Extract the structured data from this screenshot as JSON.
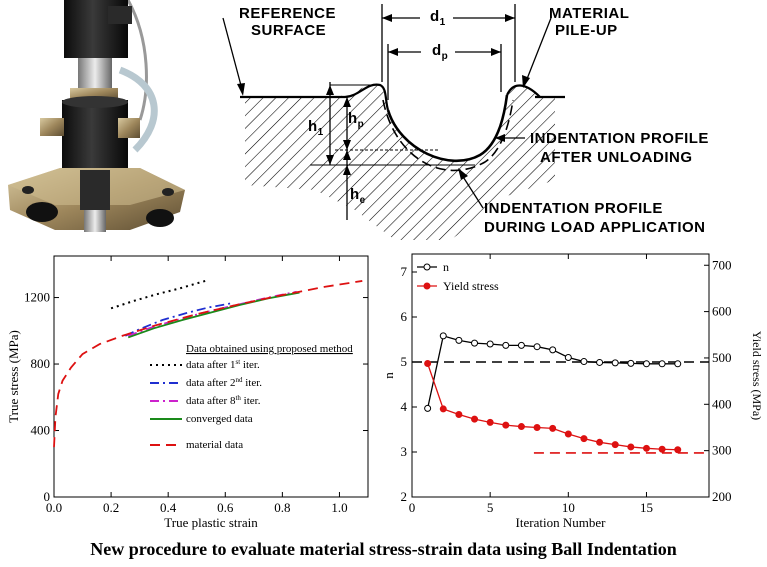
{
  "caption": "New procedure to evaluate material stress-strain data using Ball Indentation",
  "schematic": {
    "labels": {
      "reference_surface_1": "REFERENCE",
      "reference_surface_2": "SURFACE",
      "pileup_1": "MATERIAL",
      "pileup_2": "PILE-UP",
      "d1": "d",
      "d1_sub": "1",
      "dp": "d",
      "dp_sub": "p",
      "h1": "h",
      "h1_sub": "1",
      "hp": "h",
      "hp_sub": "p",
      "he": "h",
      "he_sub": "e",
      "after_unload_1": "INDENTATION PROFILE",
      "after_unload_2": "AFTER UNLOADING",
      "during_load_1": "INDENTATION PROFILE",
      "during_load_2": "DURING LOAD APPLICATION"
    }
  },
  "chart_data": [
    {
      "type": "line",
      "xlabel": "True plastic strain",
      "ylabel": "True stress (MPa)",
      "xlim": [
        0.0,
        1.1
      ],
      "ylim": [
        0,
        1450
      ],
      "xticks": [
        "0.0",
        "0.2",
        "0.4",
        "0.6",
        "0.8",
        "1.0"
      ],
      "yticks": [
        "0",
        "400",
        "800",
        "1200"
      ],
      "legend_title": "Data obtained using proposed method",
      "legend": [
        {
          "text": "data after 1",
          "sup": "st",
          "tail": " iter."
        },
        {
          "text": "data after 2",
          "sup": "nd",
          "tail": " iter."
        },
        {
          "text": "data after 8",
          "sup": "th",
          "tail": " iter."
        },
        {
          "text": "converged data",
          "sup": "",
          "tail": ""
        },
        {
          "text": "material data",
          "sup": "",
          "tail": ""
        }
      ],
      "series": [
        {
          "name": "data after 1st iter.",
          "color": "#000000",
          "dash": "dot",
          "x": [
            0.2,
            0.28,
            0.36,
            0.44,
            0.5,
            0.54
          ],
          "y": [
            1135,
            1180,
            1220,
            1255,
            1285,
            1305
          ]
        },
        {
          "name": "data after 2nd iter.",
          "color": "#1f2fd0",
          "dash": "dashdot",
          "x": [
            0.25,
            0.3,
            0.38,
            0.46,
            0.54,
            0.62
          ],
          "y": [
            970,
            1010,
            1065,
            1105,
            1140,
            1165
          ]
        },
        {
          "name": "data after 8th iter.",
          "color": "#cc22cc",
          "dash": "dashdot",
          "x": [
            0.26,
            0.35,
            0.45,
            0.55,
            0.65,
            0.75,
            0.85
          ],
          "y": [
            970,
            1025,
            1075,
            1120,
            1160,
            1200,
            1235
          ]
        },
        {
          "name": "converged data",
          "color": "#1a8a1a",
          "dash": "solid",
          "x": [
            0.26,
            0.35,
            0.45,
            0.55,
            0.65,
            0.75,
            0.86
          ],
          "y": [
            960,
            1015,
            1065,
            1110,
            1155,
            1195,
            1230
          ]
        },
        {
          "name": "material data",
          "color": "#dd1111",
          "dash": "dash",
          "x": [
            0.0,
            0.005,
            0.015,
            0.03,
            0.06,
            0.1,
            0.16,
            0.24,
            0.35,
            0.5,
            0.65,
            0.8,
            0.95,
            1.08
          ],
          "y": [
            300,
            480,
            620,
            700,
            780,
            860,
            920,
            970,
            1030,
            1100,
            1160,
            1215,
            1265,
            1300
          ]
        }
      ]
    },
    {
      "type": "line",
      "xlabel": "Iteration Number",
      "ylabel": "n",
      "ylabel_right": "Yield stress (MPa)",
      "xlim": [
        0,
        19
      ],
      "ylim": [
        2,
        7.4
      ],
      "ylim_right": [
        200,
        700
      ],
      "xticks": [
        "0",
        "5",
        "10",
        "15"
      ],
      "yticks": [
        "2",
        "3",
        "4",
        "5",
        "6",
        "7"
      ],
      "yticks_right": [
        "200",
        "300",
        "400",
        "500",
        "600",
        "700"
      ],
      "legend": [
        "n",
        "Yield stress"
      ],
      "reference_n": 5,
      "reference_yield": 295,
      "series": [
        {
          "name": "n",
          "color": "#000000",
          "marker": "open-circle",
          "axis": "left",
          "x": [
            1,
            2,
            3,
            4,
            5,
            6,
            7,
            8,
            9,
            10,
            11,
            12,
            13,
            14,
            15,
            16,
            17
          ],
          "y": [
            3.97,
            5.58,
            5.48,
            5.42,
            5.4,
            5.37,
            5.37,
            5.34,
            5.27,
            5.1,
            5.01,
            4.99,
            4.98,
            4.97,
            4.96,
            4.96,
            4.96
          ]
        },
        {
          "name": "Yield stress",
          "color": "#dd1111",
          "marker": "filled-circle",
          "axis": "right",
          "x": [
            1,
            2,
            3,
            4,
            5,
            6,
            7,
            8,
            9,
            10,
            11,
            12,
            13,
            14,
            15,
            16,
            17
          ],
          "y": [
            488,
            390,
            378,
            368,
            361,
            355,
            352,
            350,
            348,
            336,
            326,
            318,
            313,
            308,
            305,
            303,
            302
          ]
        }
      ]
    }
  ]
}
